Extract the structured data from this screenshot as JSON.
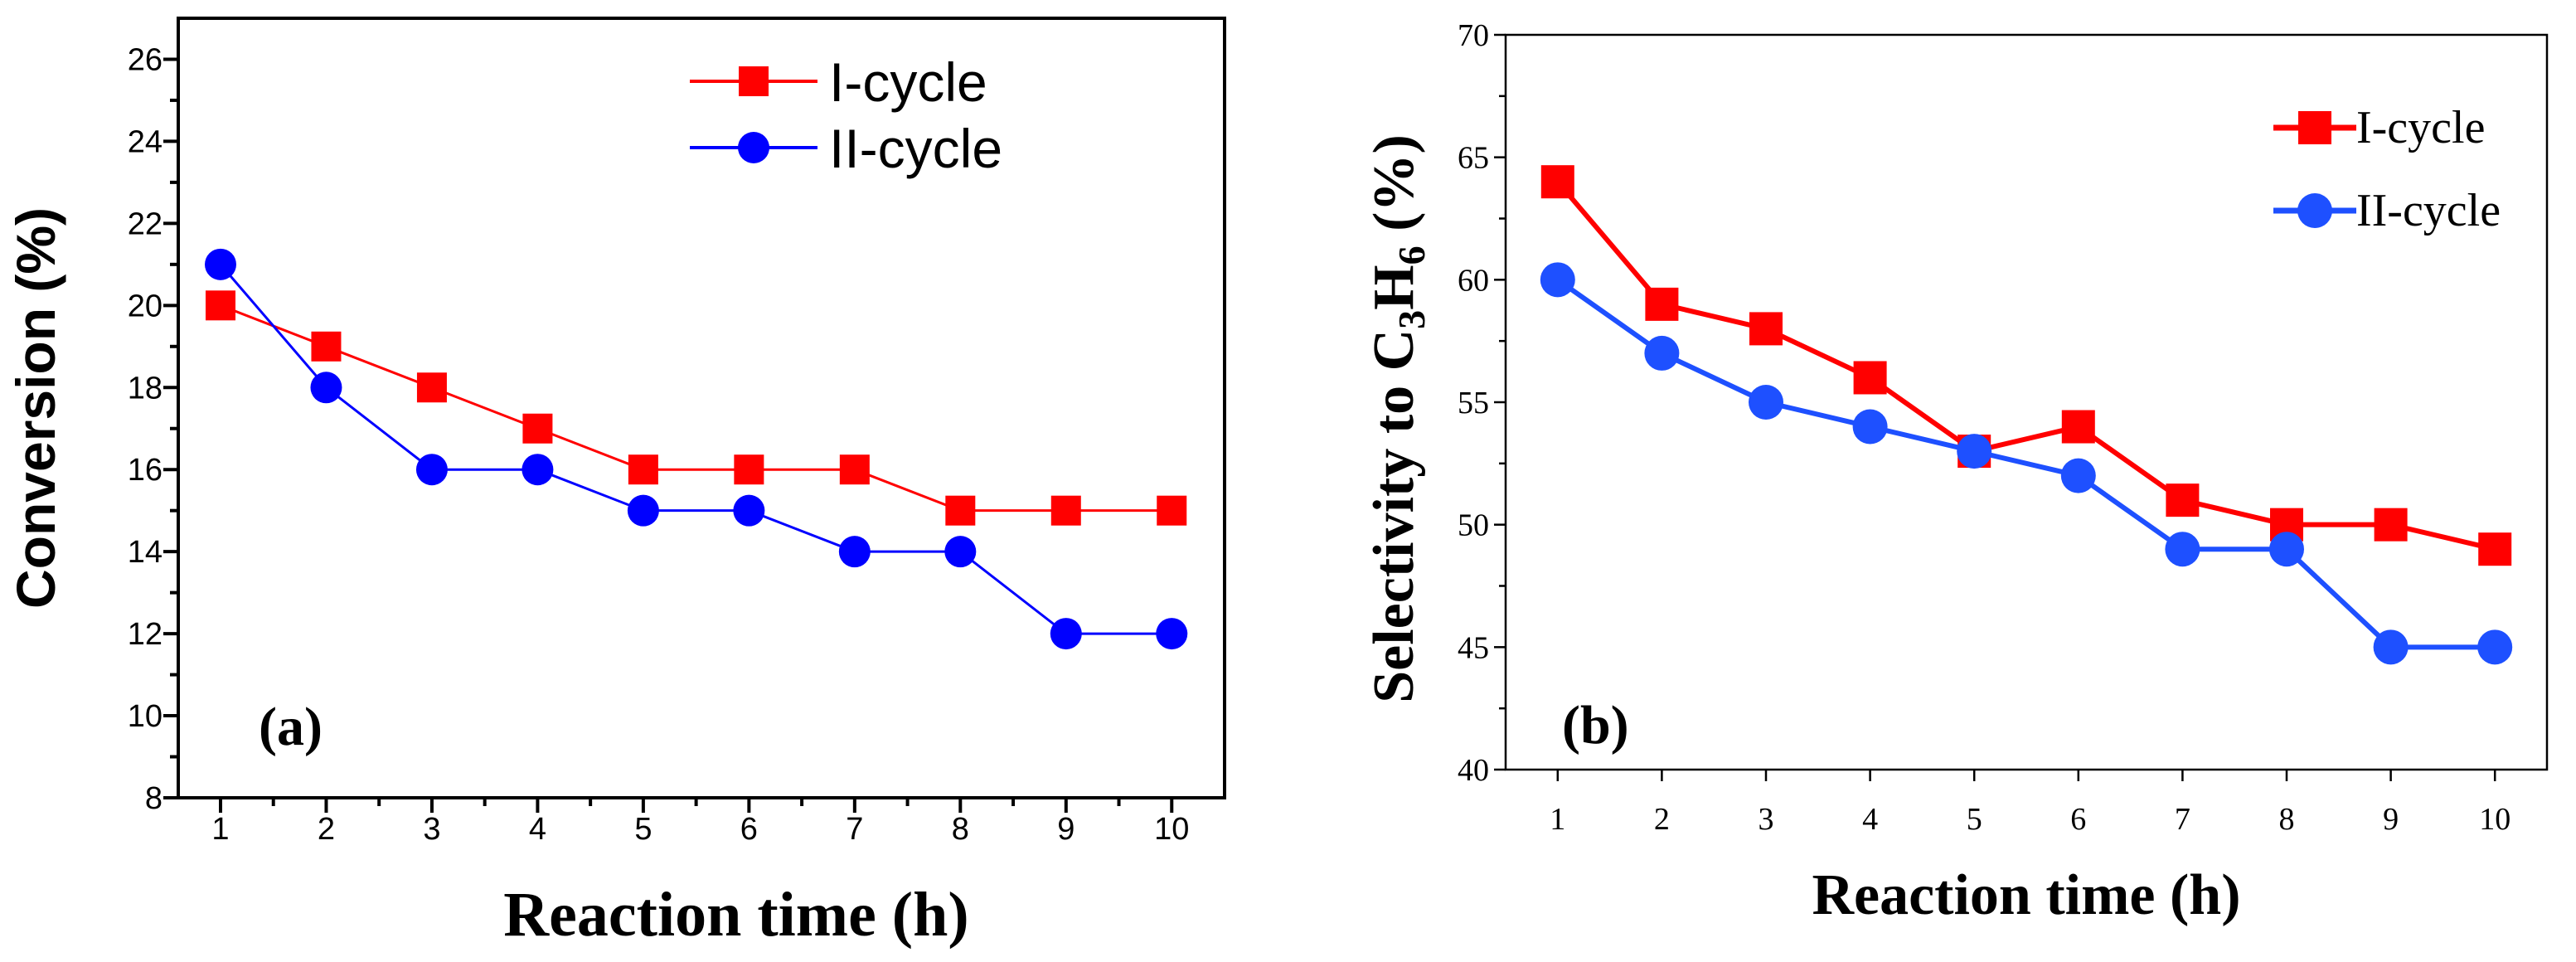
{
  "chart_data": [
    {
      "id": "a",
      "type": "line",
      "panel_label": "(a)",
      "title": "",
      "xlabel": "Reaction time (h)",
      "ylabel": "Conversion (%)",
      "x": [
        1,
        2,
        3,
        4,
        5,
        6,
        7,
        8,
        9,
        10
      ],
      "xlim": [
        0.6,
        10.5
      ],
      "ylim": [
        8,
        27
      ],
      "yticks": [
        8,
        10,
        12,
        14,
        16,
        18,
        20,
        22,
        24,
        26
      ],
      "legend_position": "top-right",
      "series": [
        {
          "name": "I-cycle",
          "marker": "square",
          "color": "#ff0000",
          "values": [
            20,
            19,
            18,
            17,
            16,
            16,
            16,
            15,
            15,
            15
          ]
        },
        {
          "name": "II-cycle",
          "marker": "circle",
          "color": "#0000ff",
          "values": [
            21,
            18,
            16,
            16,
            15,
            15,
            14,
            14,
            12,
            12
          ]
        }
      ]
    },
    {
      "id": "b",
      "type": "line",
      "panel_label": "(b)",
      "title": "",
      "xlabel": "Reaction time (h)",
      "ylabel_parts": [
        "Selectivity to C",
        "3",
        "H",
        "6",
        " (%)"
      ],
      "x": [
        1,
        2,
        3,
        4,
        5,
        6,
        7,
        8,
        9,
        10
      ],
      "xlim": [
        0.5,
        10.5
      ],
      "ylim": [
        40,
        70
      ],
      "yticks": [
        40,
        45,
        50,
        55,
        60,
        65,
        70
      ],
      "legend_position": "top-right",
      "series": [
        {
          "name": "I-cycle",
          "marker": "square",
          "color": "#ff0000",
          "values": [
            64,
            59,
            58,
            56,
            53,
            54,
            51,
            50,
            50,
            49
          ]
        },
        {
          "name": "II-cycle",
          "marker": "circle",
          "color": "#1e50ff",
          "values": [
            60,
            57,
            55,
            54,
            53,
            52,
            49,
            49,
            45,
            45
          ]
        }
      ]
    }
  ]
}
